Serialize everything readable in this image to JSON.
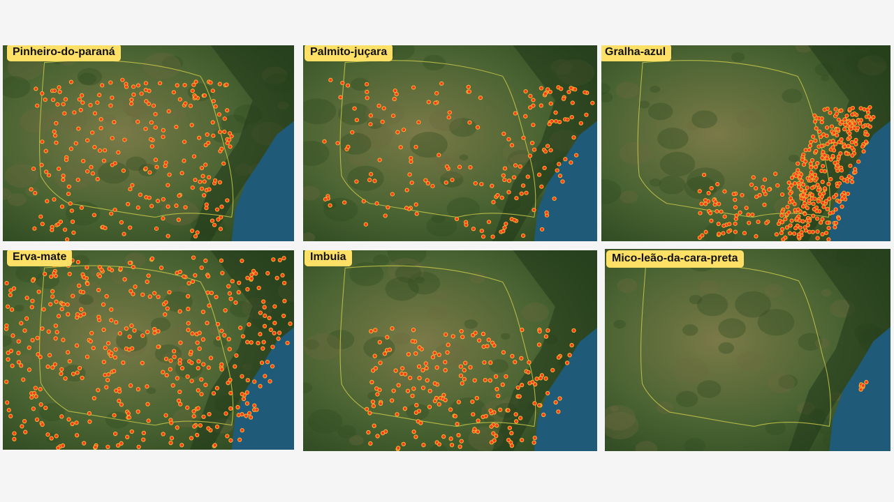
{
  "panels": [
    {
      "title": "Pinheiro-do-paraná",
      "density": 230,
      "pattern": "interior"
    },
    {
      "title": "Palmito-juçara",
      "density": 180,
      "pattern": "coast"
    },
    {
      "title": "Gralha-azul",
      "density": 420,
      "pattern": "coast-dense"
    },
    {
      "title": "Erva-mate",
      "density": 420,
      "pattern": "interior-wide"
    },
    {
      "title": "Imbuia",
      "density": 200,
      "pattern": "south"
    },
    {
      "title": "Mico-leão-da-cara-preta",
      "density": 6,
      "pattern": "single-coast"
    }
  ],
  "colors": {
    "land": "#4a6332",
    "land_dark": "#2f4a22",
    "land_light": "#7a7a48",
    "ocean": "#1f5a78",
    "border": "#c8c84a",
    "point_fill": "#ff3a1a",
    "point_stroke": "#f2b233",
    "label_bg": "#ffe066"
  }
}
